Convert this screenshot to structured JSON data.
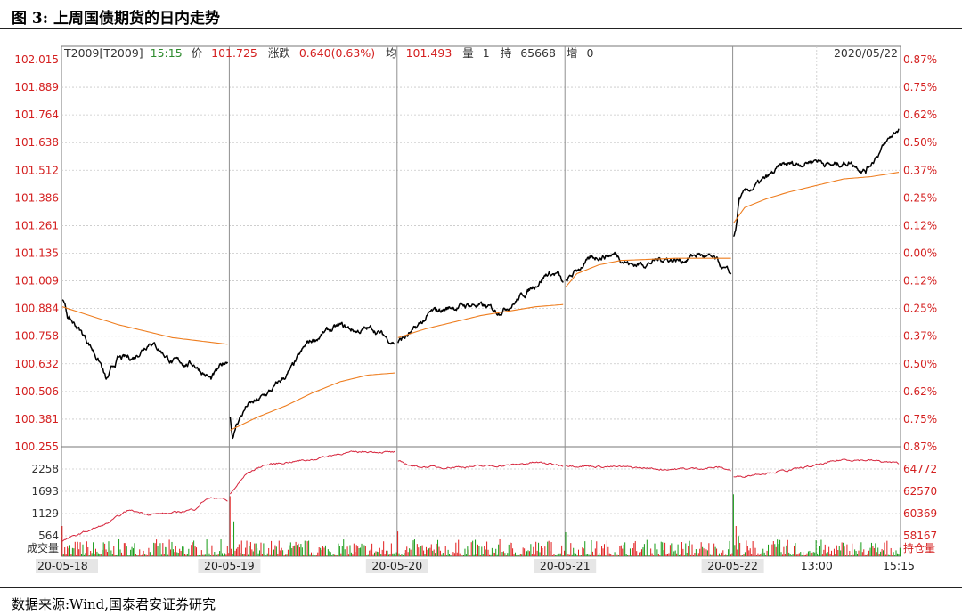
{
  "figure": {
    "title": "图 3:  上周国债期货的日内走势",
    "source": "数据来源:Wind,国泰君安证券研究"
  },
  "chart_data": {
    "type": "line",
    "header": {
      "contract": "T2009[T2009]",
      "time": "15:15",
      "price_label": "价",
      "price": "101.725",
      "change_label": "涨跌",
      "change": "0.640(0.63%)",
      "avg_label": "均",
      "avg": "101.493",
      "vol_label": "量",
      "vol": "1",
      "oi_label": "持",
      "oi": "65668",
      "inc_label": "增",
      "inc": "0",
      "date": "2020/05/22"
    },
    "price_axis": {
      "ylim": [
        100.255,
        102.015
      ],
      "left_ticks": [
        "102.015",
        "101.889",
        "101.764",
        "101.638",
        "101.512",
        "101.386",
        "101.261",
        "101.135",
        "101.009",
        "100.884",
        "100.758",
        "100.632",
        "100.506",
        "100.381",
        "100.255"
      ],
      "right_ticks": [
        "0.87%",
        "0.75%",
        "0.62%",
        "0.50%",
        "0.37%",
        "0.25%",
        "0.12%",
        "0.00%",
        "0.12%",
        "0.25%",
        "0.37%",
        "0.50%",
        "0.62%",
        "0.75%",
        "0.87%"
      ]
    },
    "lower_axis": {
      "left_ticks": [
        "2258",
        "1693",
        "1129",
        "564"
      ],
      "left_title": "成交量",
      "right_ticks": [
        "64772",
        "62570",
        "60369",
        "58167"
      ],
      "right_title": "持仓量",
      "oi_range": [
        55966,
        66973
      ]
    },
    "x_labels": [
      {
        "label": "20-05-18",
        "pos": 0
      },
      {
        "label": "20-05-19",
        "pos": 1
      },
      {
        "label": "20-05-20",
        "pos": 2
      },
      {
        "label": "20-05-21",
        "pos": 3
      },
      {
        "label": "20-05-22",
        "pos": 4
      },
      {
        "label": "13:00",
        "pos": 4.5
      },
      {
        "label": "15:15",
        "pos": 5
      }
    ],
    "series": [
      {
        "key": "price",
        "color": "#000000",
        "days": [
          [
            [
              0,
              100.93
            ],
            [
              0.1,
              100.84
            ],
            [
              0.3,
              100.79
            ],
            [
              0.5,
              100.72
            ],
            [
              0.7,
              100.63
            ],
            [
              0.8,
              100.55
            ],
            [
              1.0,
              100.65
            ],
            [
              1.3,
              100.66
            ],
            [
              1.6,
              100.74
            ],
            [
              2.0,
              100.64
            ],
            [
              2.4,
              100.63
            ],
            [
              2.7,
              100.56
            ],
            [
              3.0,
              100.65
            ]
          ],
          [
            [
              0,
              100.39
            ],
            [
              0.05,
              100.29
            ],
            [
              0.12,
              100.36
            ],
            [
              0.3,
              100.44
            ],
            [
              0.5,
              100.46
            ],
            [
              0.8,
              100.52
            ],
            [
              1.1,
              100.6
            ],
            [
              1.4,
              100.72
            ],
            [
              1.7,
              100.77
            ],
            [
              2.0,
              100.8
            ],
            [
              2.3,
              100.78
            ],
            [
              2.6,
              100.79
            ],
            [
              2.9,
              100.74
            ],
            [
              3.0,
              100.73
            ]
          ],
          [
            [
              0,
              100.73
            ],
            [
              0.3,
              100.78
            ],
            [
              0.6,
              100.86
            ],
            [
              1.0,
              100.89
            ],
            [
              1.4,
              100.9
            ],
            [
              1.8,
              100.87
            ],
            [
              2.1,
              100.91
            ],
            [
              2.4,
              100.97
            ],
            [
              2.7,
              101.04
            ],
            [
              2.9,
              101.04
            ],
            [
              3.0,
              100.99
            ]
          ],
          [
            [
              0,
              101.0
            ],
            [
              0.3,
              101.08
            ],
            [
              0.6,
              101.12
            ],
            [
              0.9,
              101.13
            ],
            [
              1.2,
              101.08
            ],
            [
              1.5,
              101.09
            ],
            [
              1.8,
              101.11
            ],
            [
              2.1,
              101.1
            ],
            [
              2.4,
              101.13
            ],
            [
              2.7,
              101.1
            ],
            [
              3.0,
              101.03
            ]
          ],
          [
            [
              0,
              101.21
            ],
            [
              0.05,
              101.26
            ],
            [
              0.1,
              101.38
            ],
            [
              0.3,
              101.42
            ],
            [
              0.6,
              101.47
            ],
            [
              0.9,
              101.53
            ],
            [
              1.2,
              101.54
            ],
            [
              1.5,
              101.56
            ],
            [
              1.8,
              101.53
            ],
            [
              2.1,
              101.55
            ],
            [
              2.4,
              101.51
            ],
            [
              2.6,
              101.58
            ],
            [
              2.8,
              101.64
            ],
            [
              3.0,
              101.7
            ]
          ]
        ]
      },
      {
        "key": "average",
        "color": "#ee7d1f",
        "days": [
          [
            [
              0,
              100.89
            ],
            [
              1,
              100.81
            ],
            [
              2,
              100.75
            ],
            [
              3,
              100.72
            ]
          ],
          [
            [
              0,
              100.33
            ],
            [
              0.5,
              100.39
            ],
            [
              1,
              100.44
            ],
            [
              1.5,
              100.5
            ],
            [
              2,
              100.55
            ],
            [
              2.5,
              100.58
            ],
            [
              3,
              100.59
            ]
          ],
          [
            [
              0,
              100.75
            ],
            [
              0.5,
              100.79
            ],
            [
              1,
              100.82
            ],
            [
              1.5,
              100.85
            ],
            [
              2,
              100.87
            ],
            [
              2.5,
              100.89
            ],
            [
              3,
              100.9
            ]
          ],
          [
            [
              0,
              100.98
            ],
            [
              0.2,
              101.04
            ],
            [
              0.6,
              101.08
            ],
            [
              1,
              101.1
            ],
            [
              2,
              101.11
            ],
            [
              3,
              101.11
            ]
          ],
          [
            [
              0,
              101.27
            ],
            [
              0.2,
              101.34
            ],
            [
              0.6,
              101.38
            ],
            [
              1,
              101.41
            ],
            [
              1.5,
              101.44
            ],
            [
              2,
              101.47
            ],
            [
              2.5,
              101.48
            ],
            [
              3,
              101.5
            ]
          ]
        ]
      },
      {
        "key": "open_interest",
        "color": "#d6243c",
        "days": [
          [
            [
              0,
              57500
            ],
            [
              0.4,
              58400
            ],
            [
              0.8,
              59200
            ],
            [
              1.2,
              60600
            ],
            [
              1.6,
              60200
            ],
            [
              2.0,
              60300
            ],
            [
              2.4,
              60700
            ],
            [
              2.6,
              61700
            ],
            [
              2.85,
              61900
            ],
            [
              3.0,
              61500
            ]
          ],
          [
            [
              0,
              62200
            ],
            [
              0.3,
              64300
            ],
            [
              0.6,
              65100
            ],
            [
              1.0,
              65400
            ],
            [
              1.5,
              65700
            ],
            [
              2.0,
              66300
            ],
            [
              2.5,
              66500
            ],
            [
              3.0,
              66400
            ]
          ],
          [
            [
              0,
              65500
            ],
            [
              0.3,
              65000
            ],
            [
              0.8,
              64900
            ],
            [
              1.4,
              65000
            ],
            [
              2.0,
              65100
            ],
            [
              2.5,
              65400
            ],
            [
              3.0,
              65100
            ]
          ],
          [
            [
              0,
              65100
            ],
            [
              0.6,
              65000
            ],
            [
              1.2,
              64900
            ],
            [
              1.8,
              64700
            ],
            [
              2.4,
              64800
            ],
            [
              2.8,
              64900
            ],
            [
              3.0,
              64600
            ]
          ],
          [
            [
              0,
              63900
            ],
            [
              0.15,
              64000
            ],
            [
              0.5,
              64300
            ],
            [
              1.0,
              64600
            ],
            [
              1.5,
              65100
            ],
            [
              2.0,
              65700
            ],
            [
              2.5,
              65600
            ],
            [
              3.0,
              65300
            ]
          ]
        ]
      }
    ],
    "volume": {
      "up_color": "#e11c1c",
      "down_color": "#169b16",
      "ylim": [
        0,
        2822
      ],
      "bars_per_day": 130,
      "spike_bars": [
        [
          0,
          0,
          780
        ],
        [
          1,
          0,
          1550
        ],
        [
          1,
          3,
          900
        ],
        [
          2,
          0,
          640
        ],
        [
          3,
          0,
          620
        ],
        [
          4,
          0,
          1600
        ],
        [
          4,
          2,
          780
        ],
        [
          4,
          4,
          520
        ]
      ]
    },
    "colors": {
      "price_tick": "#d42020",
      "right_tick": "#d42020",
      "header_black": "#333333",
      "header_red": "#d42020",
      "header_green": "#2e8b2e",
      "grid": "#c7c7c7",
      "separator": "#8f8f8f"
    }
  }
}
